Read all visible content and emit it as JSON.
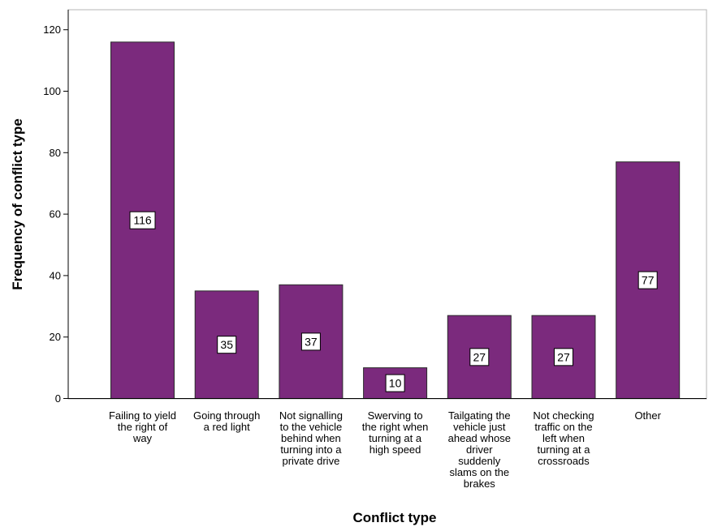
{
  "chart_data": {
    "type": "bar",
    "title": "",
    "xlabel": "Conflict type",
    "ylabel": "Frequency of conflict type",
    "categories": [
      "Failing to yield the right of way",
      "Going through a red light",
      "Not signalling to the vehicle behind when turning into a private drive",
      "Swerving to the right when turning at a high speed",
      "Tailgating the vehicle just ahead whose driver suddenly slams on the brakes",
      "Not checking traffic on the left when turning at a crossroads",
      "Other"
    ],
    "category_lines": [
      [
        "Failing to yield",
        "the right of",
        "way"
      ],
      [
        "Going through",
        "a red light"
      ],
      [
        "Not signalling",
        "to the vehicle",
        "behind when",
        "turning into a",
        "private drive"
      ],
      [
        "Swerving to",
        "the right when",
        "turning at a",
        "high speed"
      ],
      [
        "Tailgating the",
        "vehicle just",
        "ahead whose",
        "driver",
        "suddenly",
        "slams on the",
        "brakes"
      ],
      [
        "Not checking",
        "traffic on the",
        "left when",
        "turning at a",
        "crossroads"
      ],
      [
        "Other"
      ]
    ],
    "values": [
      116,
      35,
      37,
      10,
      27,
      27,
      77
    ],
    "data_labels": [
      "116",
      "35",
      "37",
      "10",
      "27",
      "27",
      "77"
    ],
    "yticks": [
      0,
      20,
      40,
      60,
      80,
      100,
      120
    ],
    "ylim": [
      0,
      125.5
    ],
    "grid": false,
    "legend": "none",
    "colors": {
      "bar_fill": "#7b2a7d",
      "bar_stroke": "#2b2b2b",
      "label_box_fill": "#ffffff",
      "label_box_stroke": "#000000",
      "axis": "#000000",
      "plot_border": "#b5b5b5"
    }
  }
}
